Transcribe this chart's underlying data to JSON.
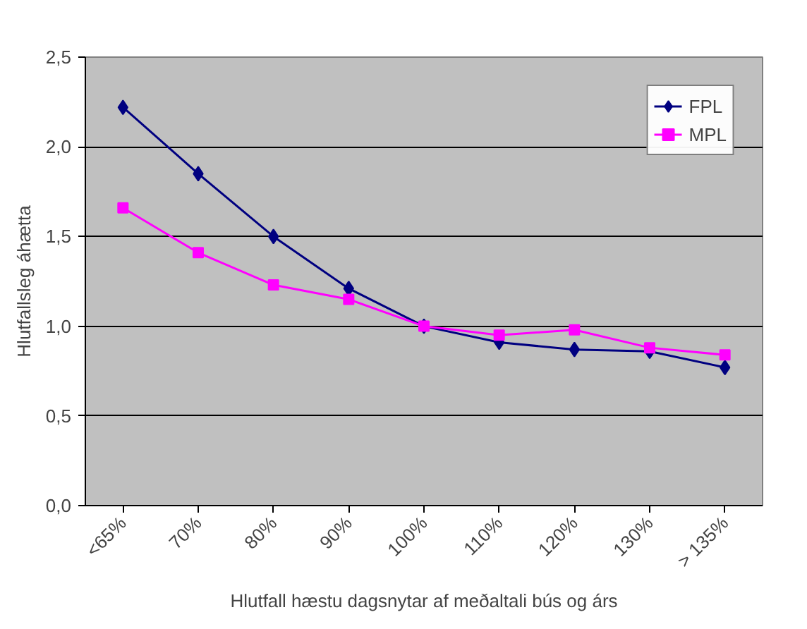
{
  "chart_data": {
    "type": "line",
    "xlabel": "Hlutfall hæstu dagsnytar af meðaltali bús og árs",
    "ylabel": "Hlutfallsleg áhætta",
    "categories": [
      "<65%",
      "70%",
      "80%",
      "90%",
      "100%",
      "110%",
      "120%",
      "130%",
      "> 135%"
    ],
    "series": [
      {
        "name": "FPL",
        "color": "#000080",
        "marker": "diamond",
        "values": [
          2.22,
          1.85,
          1.5,
          1.21,
          1.0,
          0.91,
          0.87,
          0.86,
          0.77
        ]
      },
      {
        "name": "MPL",
        "color": "#ff00ff",
        "marker": "square",
        "values": [
          1.66,
          1.41,
          1.23,
          1.15,
          1.0,
          0.95,
          0.98,
          0.88,
          0.84
        ]
      }
    ],
    "ylim": [
      0,
      2.5
    ],
    "yticks": [
      {
        "value": 0,
        "label": "0,0"
      },
      {
        "value": 0.5,
        "label": "0,5"
      },
      {
        "value": 1,
        "label": "1,0"
      },
      {
        "value": 1.5,
        "label": "1,5"
      },
      {
        "value": 2,
        "label": "2,0"
      },
      {
        "value": 2.5,
        "label": "2,5"
      }
    ],
    "grid": "y",
    "legend": "top right",
    "line_style": "solid"
  }
}
